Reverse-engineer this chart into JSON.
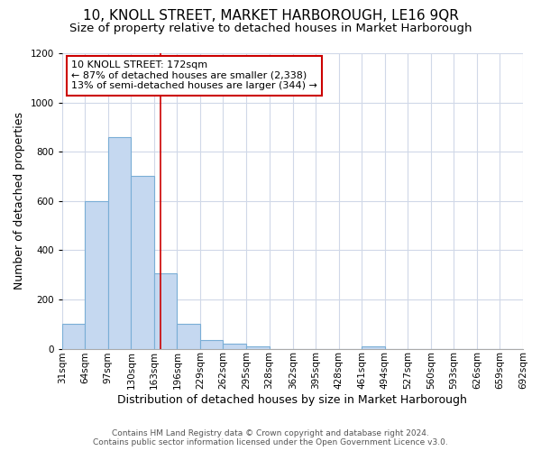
{
  "title": "10, KNOLL STREET, MARKET HARBOROUGH, LE16 9QR",
  "subtitle": "Size of property relative to detached houses in Market Harborough",
  "xlabel": "Distribution of detached houses by size in Market Harborough",
  "ylabel": "Number of detached properties",
  "footer_line1": "Contains HM Land Registry data © Crown copyright and database right 2024.",
  "footer_line2": "Contains public sector information licensed under the Open Government Licence v3.0.",
  "bin_labels": [
    "31sqm",
    "64sqm",
    "97sqm",
    "130sqm",
    "163sqm",
    "196sqm",
    "229sqm",
    "262sqm",
    "295sqm",
    "328sqm",
    "362sqm",
    "395sqm",
    "428sqm",
    "461sqm",
    "494sqm",
    "527sqm",
    "560sqm",
    "593sqm",
    "626sqm",
    "659sqm",
    "692sqm"
  ],
  "bin_edges": [
    31,
    64,
    97,
    130,
    163,
    196,
    229,
    262,
    295,
    328,
    362,
    395,
    428,
    461,
    494,
    527,
    560,
    593,
    626,
    659,
    692
  ],
  "bar_values": [
    100,
    600,
    860,
    700,
    305,
    100,
    35,
    22,
    10,
    0,
    0,
    0,
    0,
    10,
    0,
    0,
    0,
    0,
    0,
    0
  ],
  "bar_color": "#c5d8f0",
  "bar_edgecolor": "#7aaed6",
  "ylim": [
    0,
    1200
  ],
  "yticks": [
    0,
    200,
    400,
    600,
    800,
    1000,
    1200
  ],
  "property_size": 172,
  "vline_color": "#cc0000",
  "annotation_text_line1": "10 KNOLL STREET: 172sqm",
  "annotation_text_line2": "← 87% of detached houses are smaller (2,338)",
  "annotation_text_line3": "13% of semi-detached houses are larger (344) →",
  "annotation_box_color": "#cc0000",
  "background_color": "#ffffff",
  "grid_color": "#d0d8e8",
  "title_fontsize": 11,
  "subtitle_fontsize": 9.5,
  "label_fontsize": 9,
  "tick_fontsize": 7.5,
  "footer_fontsize": 6.5
}
